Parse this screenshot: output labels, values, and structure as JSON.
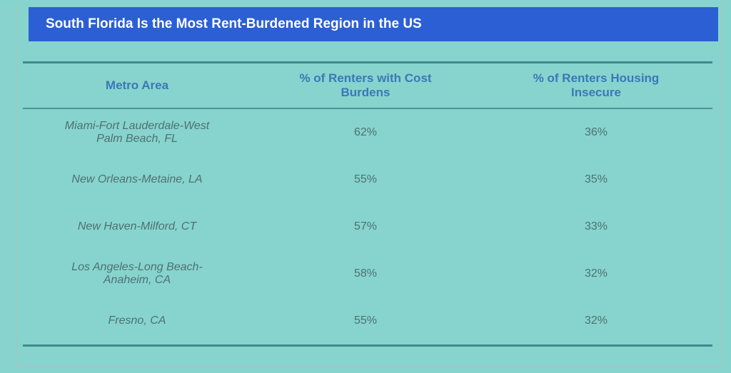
{
  "header": {
    "title": "South Florida Is the Most Rent-Burdened Region in the US"
  },
  "table": {
    "columns": [
      "Metro Area",
      "% of Renters with Cost Burdens",
      "% of Renters Housing Insecure"
    ],
    "rows": [
      [
        "Miami-Fort Lauderdale-West Palm Beach, FL",
        "62%",
        "36%"
      ],
      [
        "New Orleans-Metaine, LA",
        "55%",
        "35%"
      ],
      [
        "New Haven-Milford, CT",
        "57%",
        "33%"
      ],
      [
        "Los Angeles-Long Beach-Anaheim, CA",
        "58%",
        "32%"
      ],
      [
        "Fresno, CA",
        "55%",
        "32%"
      ]
    ]
  }
}
